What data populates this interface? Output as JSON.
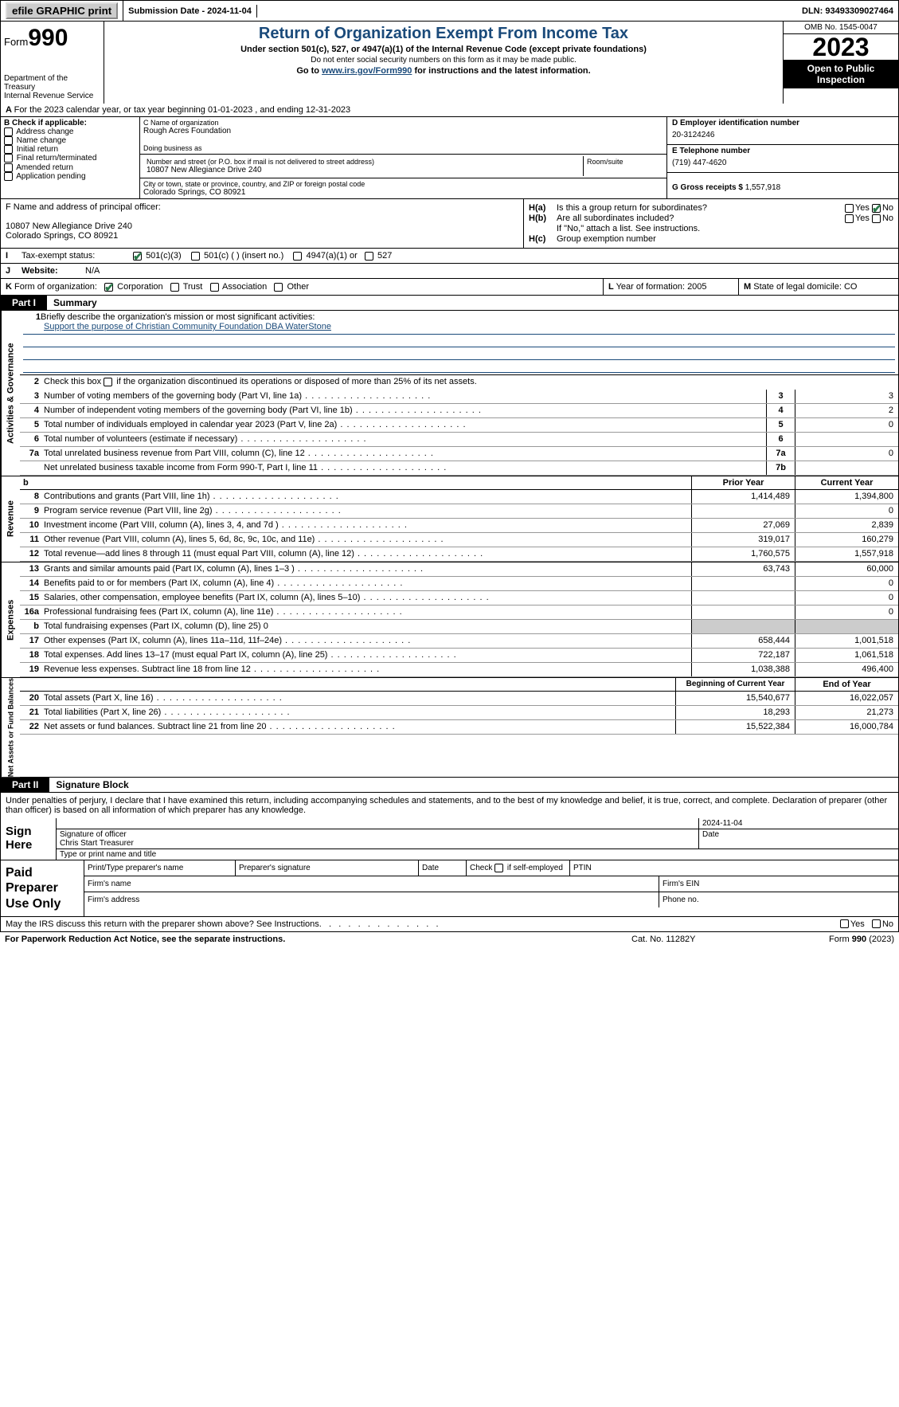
{
  "top": {
    "efile_label": "efile GRAPHIC print",
    "submission_label": "Submission Date - 2024-11-04",
    "dln": "DLN: 93493309027464"
  },
  "header": {
    "form_word": "Form",
    "form_number": "990",
    "dept": "Department of the Treasury\nInternal Revenue Service",
    "title": "Return of Organization Exempt From Income Tax",
    "sub1": "Under section 501(c), 527, or 4947(a)(1) of the Internal Revenue Code (except private foundations)",
    "sub2": "Do not enter social security numbers on this form as it may be made public.",
    "sub3_pre": "Go to ",
    "sub3_link": "www.irs.gov/Form990",
    "sub3_post": " for instructions and the latest information.",
    "omb": "OMB No. 1545-0047",
    "year": "2023",
    "inspect": "Open to Public Inspection"
  },
  "line_a": "For the 2023 calendar year, or tax year beginning 01-01-2023    , and ending 12-31-2023",
  "section_b": {
    "title": "B Check if applicable:",
    "items": [
      "Address change",
      "Name change",
      "Initial return",
      "Final return/terminated",
      "Amended return",
      "Application pending"
    ]
  },
  "section_c": {
    "name_label": "C Name of organization",
    "name": "Rough Acres Foundation",
    "dba_label": "Doing business as",
    "addr_label": "Number and street (or P.O. box if mail is not delivered to street address)",
    "addr": "10807 New Allegiance Drive 240",
    "room_label": "Room/suite",
    "city_label": "City or town, state or province, country, and ZIP or foreign postal code",
    "city": "Colorado Springs, CO  80921"
  },
  "section_d": {
    "ein_label": "D Employer identification number",
    "ein": "20-3124246",
    "phone_label": "E Telephone number",
    "phone": "(719) 447-4620",
    "gross_label": "G Gross receipts $ ",
    "gross": "1,557,918"
  },
  "section_f": {
    "label": "F  Name and address of principal officer:",
    "addr1": "10807 New Allegiance Drive 240",
    "addr2": "Colorado Springs, CO  80921"
  },
  "section_h": {
    "ha_label": "Is this a group return for subordinates?",
    "hb_label": "Are all subordinates included?",
    "hb_note": "If \"No,\" attach a list. See instructions.",
    "hc_label": "Group exemption number",
    "yes": "Yes",
    "no": "No"
  },
  "section_i": {
    "label": "Tax-exempt status:",
    "opts": [
      "501(c)(3)",
      "501(c) (  ) (insert no.)",
      "4947(a)(1) or",
      "527"
    ]
  },
  "section_j": {
    "label": "Website:",
    "value": "N/A"
  },
  "section_k": {
    "label": "Form of organization:",
    "opts": [
      "Corporation",
      "Trust",
      "Association",
      "Other"
    ],
    "l_label": "Year of formation: ",
    "l_value": "2005",
    "m_label": "State of legal domicile: ",
    "m_value": "CO"
  },
  "part1": {
    "num": "Part I",
    "title": "Summary"
  },
  "gov": {
    "side": "Activities & Governance",
    "l1_label": "Briefly describe the organization's mission or most significant activities:",
    "l1_text": "Support the purpose of Christian Community Foundation DBA WaterStone",
    "l2": "Check this box       if the organization discontinued its operations or disposed of more than 25% of its net assets.",
    "rows": [
      {
        "n": "3",
        "d": "Number of voting members of the governing body (Part VI, line 1a)",
        "bn": "3",
        "v": "3"
      },
      {
        "n": "4",
        "d": "Number of independent voting members of the governing body (Part VI, line 1b)",
        "bn": "4",
        "v": "2"
      },
      {
        "n": "5",
        "d": "Total number of individuals employed in calendar year 2023 (Part V, line 2a)",
        "bn": "5",
        "v": "0"
      },
      {
        "n": "6",
        "d": "Total number of volunteers (estimate if necessary)",
        "bn": "6",
        "v": ""
      },
      {
        "n": "7a",
        "d": "Total unrelated business revenue from Part VIII, column (C), line 12",
        "bn": "7a",
        "v": "0"
      },
      {
        "n": "",
        "d": "Net unrelated business taxable income from Form 990-T, Part I, line 11",
        "bn": "7b",
        "v": ""
      }
    ]
  },
  "rev": {
    "side": "Revenue",
    "hdr_prior": "Prior Year",
    "hdr_curr": "Current Year",
    "rows": [
      {
        "n": "8",
        "d": "Contributions and grants (Part VIII, line 1h)",
        "p": "1,414,489",
        "c": "1,394,800"
      },
      {
        "n": "9",
        "d": "Program service revenue (Part VIII, line 2g)",
        "p": "",
        "c": "0"
      },
      {
        "n": "10",
        "d": "Investment income (Part VIII, column (A), lines 3, 4, and 7d )",
        "p": "27,069",
        "c": "2,839"
      },
      {
        "n": "11",
        "d": "Other revenue (Part VIII, column (A), lines 5, 6d, 8c, 9c, 10c, and 11e)",
        "p": "319,017",
        "c": "160,279"
      },
      {
        "n": "12",
        "d": "Total revenue—add lines 8 through 11 (must equal Part VIII, column (A), line 12)",
        "p": "1,760,575",
        "c": "1,557,918"
      }
    ]
  },
  "exp": {
    "side": "Expenses",
    "rows": [
      {
        "n": "13",
        "d": "Grants and similar amounts paid (Part IX, column (A), lines 1–3 )",
        "p": "63,743",
        "c": "60,000"
      },
      {
        "n": "14",
        "d": "Benefits paid to or for members (Part IX, column (A), line 4)",
        "p": "",
        "c": "0"
      },
      {
        "n": "15",
        "d": "Salaries, other compensation, employee benefits (Part IX, column (A), lines 5–10)",
        "p": "",
        "c": "0"
      },
      {
        "n": "16a",
        "d": "Professional fundraising fees (Part IX, column (A), line 11e)",
        "p": "",
        "c": "0"
      },
      {
        "n": "b",
        "d": "Total fundraising expenses (Part IX, column (D), line 25) 0",
        "p": "shade",
        "c": "shade"
      },
      {
        "n": "17",
        "d": "Other expenses (Part IX, column (A), lines 11a–11d, 11f–24e)",
        "p": "658,444",
        "c": "1,001,518"
      },
      {
        "n": "18",
        "d": "Total expenses. Add lines 13–17 (must equal Part IX, column (A), line 25)",
        "p": "722,187",
        "c": "1,061,518"
      },
      {
        "n": "19",
        "d": "Revenue less expenses. Subtract line 18 from line 12",
        "p": "1,038,388",
        "c": "496,400"
      }
    ]
  },
  "net": {
    "side": "Net Assets or Fund Balances",
    "hdr_beg": "Beginning of Current Year",
    "hdr_end": "End of Year",
    "rows": [
      {
        "n": "20",
        "d": "Total assets (Part X, line 16)",
        "p": "15,540,677",
        "c": "16,022,057"
      },
      {
        "n": "21",
        "d": "Total liabilities (Part X, line 26)",
        "p": "18,293",
        "c": "21,273"
      },
      {
        "n": "22",
        "d": "Net assets or fund balances. Subtract line 21 from line 20",
        "p": "15,522,384",
        "c": "16,000,784"
      }
    ]
  },
  "part2": {
    "num": "Part II",
    "title": "Signature Block"
  },
  "sig": {
    "decl": "Under penalties of perjury, I declare that I have examined this return, including accompanying schedules and statements, and to the best of my knowledge and belief, it is true, correct, and complete. Declaration of preparer (other than officer) is based on all information of which preparer has any knowledge.",
    "here": "Sign Here",
    "date": "2024-11-04",
    "sig_officer": "Signature of officer",
    "officer": "Chris Start  Treasurer",
    "type_name": "Type or print name and title",
    "date_lbl": "Date"
  },
  "prep": {
    "lbl": "Paid Preparer Use Only",
    "print_name": "Print/Type preparer's name",
    "prep_sig": "Preparer's signature",
    "date": "Date",
    "self_emp": "Check        if self-employed",
    "ptin": "PTIN",
    "firm_name": "Firm's name",
    "firm_ein": "Firm's EIN",
    "firm_addr": "Firm's address",
    "phone": "Phone no."
  },
  "footer": {
    "q": "May the IRS discuss this return with the preparer shown above? See Instructions.",
    "yes": "Yes",
    "no": "No",
    "notice": "For Paperwork Reduction Act Notice, see the separate instructions.",
    "cat": "Cat. No. 11282Y",
    "form": "Form 990 (2023)"
  },
  "colors": {
    "accent": "#1a4a7a",
    "check": "#2a7a4a",
    "shade": "#cccccc"
  }
}
